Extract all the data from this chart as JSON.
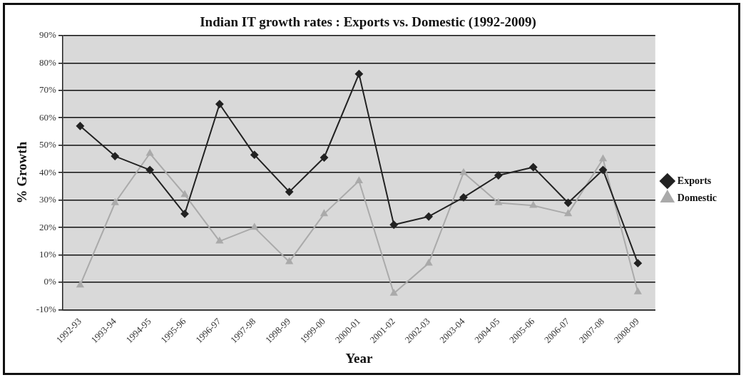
{
  "chart_data": {
    "type": "line",
    "title": "Indian IT growth rates : Exports vs. Domestic (1992-2009)",
    "xlabel": "Year",
    "ylabel": "% Growth",
    "categories": [
      "1992-93",
      "1993-94",
      "1994-95",
      "1995-96",
      "1996-97",
      "1997-98",
      "1998-99",
      "1999-00",
      "2000-01",
      "2001-02",
      "2002-03",
      "2003-04",
      "2004-05",
      "2005-06",
      "2006-07",
      "2007-08",
      "2008-09"
    ],
    "series": [
      {
        "name": "Exports",
        "color": "#222222",
        "marker": "diamond",
        "values": [
          57,
          46,
          41,
          25,
          65,
          46.5,
          33,
          45.5,
          76,
          21,
          24,
          31,
          39,
          42,
          29,
          41,
          7
        ]
      },
      {
        "name": "Domestic",
        "color": "#aaaaaa",
        "marker": "triangle",
        "values": [
          -1,
          29,
          47,
          32,
          15,
          20,
          7.5,
          25,
          37,
          -4,
          7,
          40,
          29,
          28,
          25,
          45,
          -3.5
        ]
      }
    ],
    "ylim": [
      -10,
      90
    ],
    "yticks": [
      {
        "value": -10,
        "label": "-10%"
      },
      {
        "value": 0,
        "label": "0%"
      },
      {
        "value": 10,
        "label": "10%"
      },
      {
        "value": 20,
        "label": "20%"
      },
      {
        "value": 30,
        "label": "30%"
      },
      {
        "value": 40,
        "label": "40%"
      },
      {
        "value": 50,
        "label": "50%"
      },
      {
        "value": 60,
        "label": "60%"
      },
      {
        "value": 70,
        "label": "70%"
      },
      {
        "value": 80,
        "label": "80%"
      },
      {
        "value": 90,
        "label": "90%"
      }
    ],
    "grid": "y",
    "legend": "right",
    "line_style": "solid"
  }
}
